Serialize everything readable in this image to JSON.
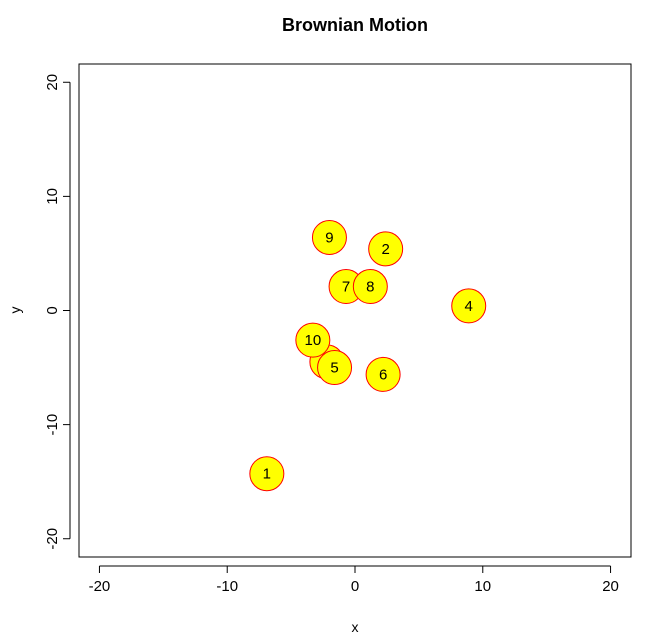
{
  "chart_data": {
    "type": "scatter",
    "title": "Brownian Motion",
    "xlabel": "x",
    "ylabel": "y",
    "xlim": [
      -21.6,
      21.6
    ],
    "ylim": [
      -21.6,
      21.6
    ],
    "xticks": [
      "-20",
      "-10",
      "0",
      "10",
      "20"
    ],
    "yticks": [
      "-20",
      "-10",
      "0",
      "10",
      "20"
    ],
    "grid": false,
    "marker_fill": "#ffff00",
    "marker_edge": "#ff0000",
    "points": [
      {
        "label": "1",
        "x": -6.9,
        "y": -14.3
      },
      {
        "label": "2",
        "x": 2.4,
        "y": 5.4
      },
      {
        "label": "3",
        "x": -2.2,
        "y": -4.5
      },
      {
        "label": "4",
        "x": 8.9,
        "y": 0.4
      },
      {
        "label": "5",
        "x": -1.6,
        "y": -5.0
      },
      {
        "label": "6",
        "x": 2.2,
        "y": -5.6
      },
      {
        "label": "7",
        "x": -0.7,
        "y": 2.1
      },
      {
        "label": "8",
        "x": 1.2,
        "y": 2.1
      },
      {
        "label": "9",
        "x": -2.0,
        "y": 6.4
      },
      {
        "label": "10",
        "x": -3.3,
        "y": -2.6
      }
    ]
  }
}
